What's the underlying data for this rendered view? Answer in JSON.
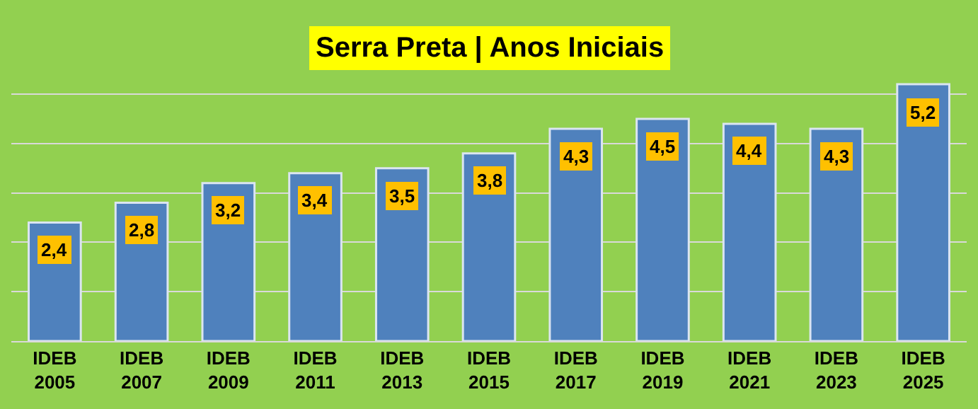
{
  "chart_data": {
    "type": "bar",
    "title": "Serra Preta | Anos Iniciais",
    "categories": [
      "IDEB\n2005",
      "IDEB\n2007",
      "IDEB\n2009",
      "IDEB\n2011",
      "IDEB\n2013",
      "IDEB\n2015",
      "IDEB\n2017",
      "IDEB\n2019",
      "IDEB\n2021",
      "IDEB\n2023",
      "IDEB\n2025"
    ],
    "values": [
      2.4,
      2.8,
      3.2,
      3.4,
      3.5,
      3.8,
      4.3,
      4.5,
      4.4,
      4.3,
      5.2
    ],
    "value_labels": [
      "2,4",
      "2,8",
      "3,2",
      "3,4",
      "3,5",
      "3,8",
      "4,3",
      "4,5",
      "4,4",
      "4,3",
      "5,2"
    ],
    "color": "#4f81bd",
    "grid": "y",
    "tick_labels": "x"
  }
}
